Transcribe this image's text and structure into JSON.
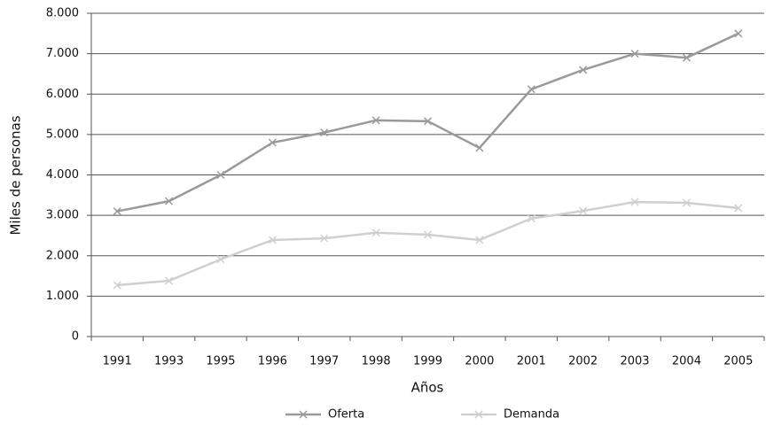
{
  "chart_data": {
    "type": "line",
    "x_label": "Años",
    "y_label": "Miles de personas",
    "categories": [
      "1991",
      "1993",
      "1995",
      "1996",
      "1997",
      "1998",
      "1999",
      "2000",
      "2001",
      "2002",
      "2003",
      "2004",
      "2005"
    ],
    "series": [
      {
        "name": "Oferta",
        "color": "#9a9a9a",
        "values": [
          3100,
          3350,
          4000,
          4800,
          5050,
          5350,
          5330,
          4670,
          6120,
          6600,
          7000,
          6900,
          7500
        ]
      },
      {
        "name": "Demanda",
        "color": "#cfcfcf",
        "values": [
          1270,
          1380,
          1910,
          2390,
          2430,
          2570,
          2520,
          2390,
          2920,
          3110,
          3330,
          3310,
          3180
        ]
      }
    ],
    "ylim": [
      0,
      8000
    ],
    "yticks": [
      0,
      {
        "value": 1000,
        "label": "1.000"
      },
      {
        "value": 2000,
        "label": "2.000"
      },
      {
        "value": 3000,
        "label": "3.000"
      },
      {
        "value": 4000,
        "label": "4.000"
      },
      {
        "value": 5000,
        "label": "5.000"
      },
      {
        "value": 6000,
        "label": "6.000"
      },
      {
        "value": 7000,
        "label": "7.000"
      },
      {
        "value": 8000,
        "label": "8.000"
      }
    ],
    "grid": true,
    "legend": "bottom"
  }
}
